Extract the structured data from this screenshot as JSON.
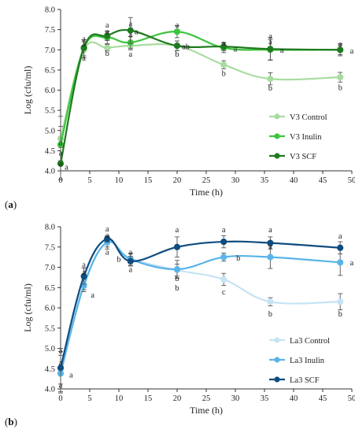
{
  "chart_data": [
    {
      "type": "line",
      "panel_label": "(a)",
      "panel_letter": "a",
      "xlabel": "Time (h)",
      "ylabel": "Log (cfu/ml)",
      "xlim": [
        0,
        50
      ],
      "ylim": [
        4.0,
        8.0
      ],
      "xticks": [
        0,
        5,
        10,
        15,
        20,
        25,
        30,
        35,
        40,
        45,
        50
      ],
      "yticks": [
        4.0,
        4.5,
        5.0,
        5.5,
        6.0,
        6.5,
        7.0,
        7.5,
        8.0
      ],
      "grid": false,
      "legend": "lower-right",
      "x": [
        0,
        4,
        8,
        12,
        20,
        28,
        36,
        48
      ],
      "series": [
        {
          "name": "V3 Control",
          "color": "#a8dca0",
          "values": [
            4.8,
            7.0,
            7.05,
            7.1,
            7.1,
            6.63,
            6.28,
            6.32
          ],
          "errors": [
            0.55,
            0.2,
            0.08,
            0.1,
            0.12,
            0.1,
            0.15,
            0.12
          ]
        },
        {
          "name": "V3 Inulin",
          "color": "#3cc43c",
          "values": [
            4.65,
            7.05,
            7.3,
            7.18,
            7.45,
            7.05,
            7.0,
            7.0
          ],
          "errors": [
            0.45,
            0.2,
            0.15,
            0.15,
            0.15,
            0.12,
            0.25,
            0.15
          ]
        },
        {
          "name": "V3 SCF",
          "color": "#1f7a1f",
          "values": [
            4.18,
            7.05,
            7.35,
            7.48,
            7.1,
            7.08,
            7.02,
            7.0
          ],
          "errors": [
            0.4,
            0.2,
            0.12,
            0.32,
            0.12,
            0.1,
            0.28,
            0.12
          ]
        }
      ],
      "annotations": [
        {
          "x": 0,
          "y": 4.7,
          "text": "a"
        },
        {
          "x": 0,
          "y": 4.45,
          "text": "a"
        },
        {
          "x": 0,
          "y": 4.18,
          "text": "a"
        },
        {
          "x": 1,
          "y": 4.1,
          "text": "a"
        },
        {
          "x": 4,
          "y": 7.28,
          "text": "a"
        },
        {
          "x": 4,
          "y": 7.15,
          "text": "a"
        },
        {
          "x": 4,
          "y": 6.8,
          "text": "a"
        },
        {
          "x": 8,
          "y": 7.62,
          "text": "a"
        },
        {
          "x": 8,
          "y": 7.45,
          "text": "a"
        },
        {
          "x": 8,
          "y": 6.92,
          "text": "b"
        },
        {
          "x": 12,
          "y": 7.65,
          "text": "a"
        },
        {
          "x": 12,
          "y": 7.38,
          "text": "a"
        },
        {
          "x": 12,
          "y": 6.9,
          "text": "a"
        },
        {
          "x": 13,
          "y": 7.45,
          "text": "a"
        },
        {
          "x": 20,
          "y": 7.62,
          "text": "a"
        },
        {
          "x": 21.5,
          "y": 7.08,
          "text": "ab"
        },
        {
          "x": 20,
          "y": 6.9,
          "text": "b"
        },
        {
          "x": 28,
          "y": 7.17,
          "text": "a"
        },
        {
          "x": 28,
          "y": 6.42,
          "text": "b"
        },
        {
          "x": 30,
          "y": 7.02,
          "text": "a"
        },
        {
          "x": 36,
          "y": 7.35,
          "text": "a"
        },
        {
          "x": 36,
          "y": 7.2,
          "text": "a"
        },
        {
          "x": 38,
          "y": 7.0,
          "text": "a"
        },
        {
          "x": 36,
          "y": 6.06,
          "text": "b"
        },
        {
          "x": 48,
          "y": 7.15,
          "text": "a"
        },
        {
          "x": 50,
          "y": 6.98,
          "text": "a"
        },
        {
          "x": 48,
          "y": 6.07,
          "text": "b"
        }
      ]
    },
    {
      "type": "line",
      "panel_label": "(b)",
      "panel_letter": "b",
      "xlabel": "Time (h)",
      "ylabel": "Log (cfu/ml)",
      "xlim": [
        0,
        50
      ],
      "ylim": [
        4.0,
        8.0
      ],
      "xticks": [
        0,
        5,
        10,
        15,
        20,
        25,
        30,
        35,
        40,
        45,
        50
      ],
      "yticks": [
        4.0,
        4.5,
        5.0,
        5.5,
        6.0,
        6.5,
        7.0,
        7.5,
        8.0
      ],
      "grid": false,
      "legend": "lower-right",
      "x": [
        0,
        4,
        8,
        12,
        20,
        28,
        36,
        48
      ],
      "series": [
        {
          "name": "La3 Control",
          "color": "#c5e3f5",
          "values": [
            4.45,
            6.6,
            7.6,
            7.22,
            6.93,
            6.7,
            6.15,
            6.15
          ],
          "errors": [
            0.55,
            0.15,
            0.15,
            0.12,
            0.15,
            0.15,
            0.1,
            0.2
          ]
        },
        {
          "name": "La3 Inulin",
          "color": "#5ab4e8",
          "values": [
            4.38,
            6.55,
            7.62,
            7.2,
            6.95,
            7.25,
            7.25,
            7.12
          ],
          "errors": [
            0.45,
            0.15,
            0.12,
            0.15,
            0.22,
            0.1,
            0.28,
            0.32
          ]
        },
        {
          "name": "La3 SCF",
          "color": "#0f4d80",
          "values": [
            4.52,
            6.78,
            7.7,
            7.15,
            7.5,
            7.63,
            7.6,
            7.48
          ],
          "errors": [
            0.4,
            0.2,
            0.08,
            0.12,
            0.25,
            0.15,
            0.15,
            0.15
          ]
        }
      ],
      "annotations": [
        {
          "x": 0,
          "y": 4.95,
          "text": "a"
        },
        {
          "x": 0,
          "y": 4.65,
          "text": "a"
        },
        {
          "x": 0,
          "y": 4.1,
          "text": "a"
        },
        {
          "x": 1.8,
          "y": 4.35,
          "text": "a"
        },
        {
          "x": 4,
          "y": 7.07,
          "text": "a"
        },
        {
          "x": 4,
          "y": 6.88,
          "text": "a"
        },
        {
          "x": 5.5,
          "y": 6.32,
          "text": "a"
        },
        {
          "x": 8,
          "y": 7.95,
          "text": "a"
        },
        {
          "x": 8,
          "y": 7.8,
          "text": "a"
        },
        {
          "x": 8,
          "y": 7.38,
          "text": "a"
        },
        {
          "x": 10,
          "y": 7.2,
          "text": "b"
        },
        {
          "x": 12,
          "y": 7.38,
          "text": "a"
        },
        {
          "x": 12,
          "y": 6.95,
          "text": "a"
        },
        {
          "x": 20,
          "y": 7.93,
          "text": "a"
        },
        {
          "x": 20,
          "y": 6.73,
          "text": "b"
        },
        {
          "x": 20,
          "y": 6.5,
          "text": "b"
        },
        {
          "x": 28,
          "y": 7.93,
          "text": "a"
        },
        {
          "x": 30.5,
          "y": 7.23,
          "text": "b"
        },
        {
          "x": 28,
          "y": 6.4,
          "text": "c"
        },
        {
          "x": 36,
          "y": 7.93,
          "text": "a"
        },
        {
          "x": 36,
          "y": 7.52,
          "text": "a"
        },
        {
          "x": 36,
          "y": 5.85,
          "text": "b"
        },
        {
          "x": 48,
          "y": 7.78,
          "text": "a"
        },
        {
          "x": 50,
          "y": 7.12,
          "text": "a"
        },
        {
          "x": 48,
          "y": 5.85,
          "text": "b"
        }
      ]
    }
  ]
}
